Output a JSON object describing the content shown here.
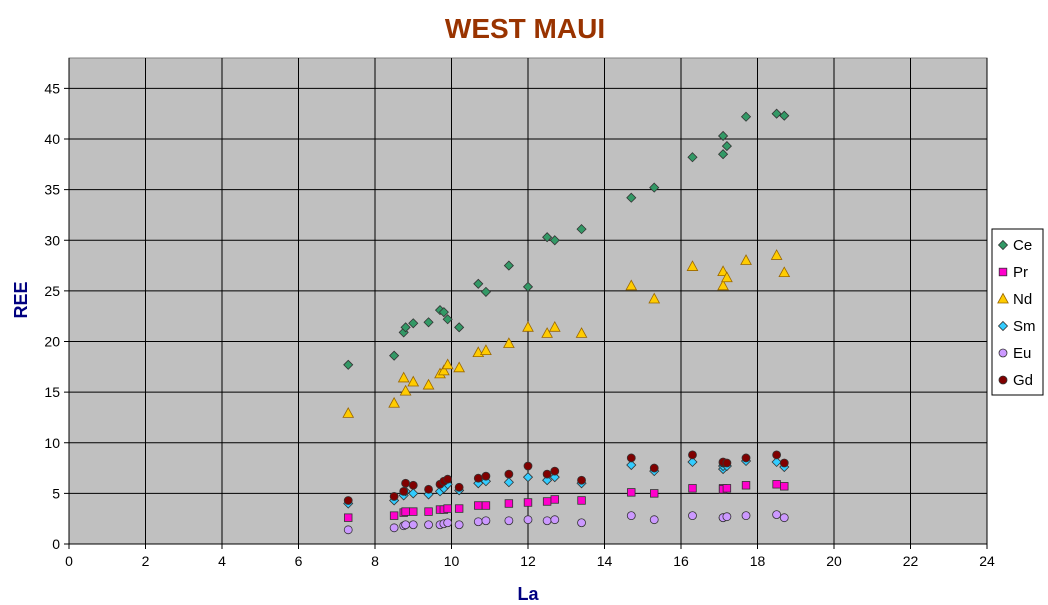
{
  "colors": {
    "title": "#993300",
    "axis_title": "#000080",
    "plot_bg": "#c0c0c0",
    "grid": "#000000"
  },
  "chart_data": {
    "type": "scatter",
    "title": "WEST MAUI",
    "xlabel": "La",
    "ylabel": "REE",
    "xlim": [
      0,
      24
    ],
    "ylim": [
      0,
      48
    ],
    "x_ticks": [
      0,
      2,
      4,
      6,
      8,
      10,
      12,
      14,
      16,
      18,
      20,
      22,
      24
    ],
    "y_ticks": [
      0,
      5,
      10,
      15,
      20,
      25,
      30,
      35,
      40,
      45
    ],
    "grid": true,
    "legend": "right",
    "x": [
      7.3,
      8.5,
      8.75,
      8.8,
      9.0,
      9.4,
      9.7,
      9.8,
      9.9,
      10.2,
      10.7,
      10.9,
      11.5,
      12.0,
      12.5,
      12.7,
      13.4,
      14.7,
      15.3,
      16.3,
      17.1,
      17.1,
      17.2,
      17.7,
      18.5,
      18.7
    ],
    "series": [
      {
        "name": "Ce",
        "marker": "diamond",
        "color": "#339966",
        "values": [
          17.7,
          18.6,
          20.9,
          21.4,
          21.8,
          21.9,
          23.1,
          22.9,
          22.2,
          21.4,
          25.7,
          24.9,
          27.5,
          25.4,
          30.3,
          30.0,
          31.1,
          34.2,
          35.2,
          38.2,
          40.3,
          38.5,
          39.3,
          42.2,
          42.5,
          42.3
        ]
      },
      {
        "name": "Pr",
        "marker": "square",
        "color": "#ff00cc",
        "values": [
          2.6,
          2.8,
          3.1,
          3.2,
          3.2,
          3.2,
          3.4,
          3.4,
          3.5,
          3.5,
          3.8,
          3.8,
          4.0,
          4.1,
          4.2,
          4.4,
          4.3,
          5.1,
          5.0,
          5.5,
          5.5,
          5.4,
          5.5,
          5.8,
          5.9,
          5.7
        ]
      },
      {
        "name": "Nd",
        "marker": "triangle",
        "color": "#ffcc00",
        "values": [
          12.9,
          13.9,
          16.4,
          15.1,
          16.0,
          15.7,
          16.8,
          17.1,
          17.7,
          17.4,
          18.9,
          19.1,
          19.8,
          21.4,
          20.8,
          21.4,
          20.8,
          25.5,
          24.2,
          27.4,
          26.9,
          25.5,
          26.3,
          28.0,
          28.5,
          26.8
        ]
      },
      {
        "name": "Sm",
        "marker": "diamond",
        "color": "#33ccff",
        "values": [
          4.0,
          4.3,
          4.8,
          5.2,
          5.0,
          4.9,
          5.2,
          5.5,
          5.9,
          5.3,
          6.0,
          6.2,
          6.1,
          6.6,
          6.3,
          6.6,
          6.0,
          7.8,
          7.2,
          8.1,
          7.4,
          7.7,
          7.7,
          8.2,
          8.1,
          7.6
        ]
      },
      {
        "name": "Eu",
        "marker": "circle",
        "color": "#cc99ff",
        "values": [
          1.4,
          1.6,
          1.8,
          1.9,
          1.9,
          1.9,
          1.9,
          2.0,
          2.1,
          1.9,
          2.2,
          2.3,
          2.3,
          2.4,
          2.3,
          2.4,
          2.1,
          2.8,
          2.4,
          2.8,
          2.6,
          2.6,
          2.7,
          2.8,
          2.9,
          2.6
        ]
      },
      {
        "name": "Gd",
        "marker": "circle",
        "color": "#800000",
        "values": [
          4.3,
          4.7,
          5.2,
          6.0,
          5.8,
          5.4,
          5.9,
          6.2,
          6.4,
          5.6,
          6.5,
          6.7,
          6.9,
          7.7,
          6.9,
          7.2,
          6.3,
          8.5,
          7.5,
          8.8,
          8.0,
          8.1,
          8.0,
          8.5,
          8.8,
          8.0
        ]
      }
    ]
  }
}
